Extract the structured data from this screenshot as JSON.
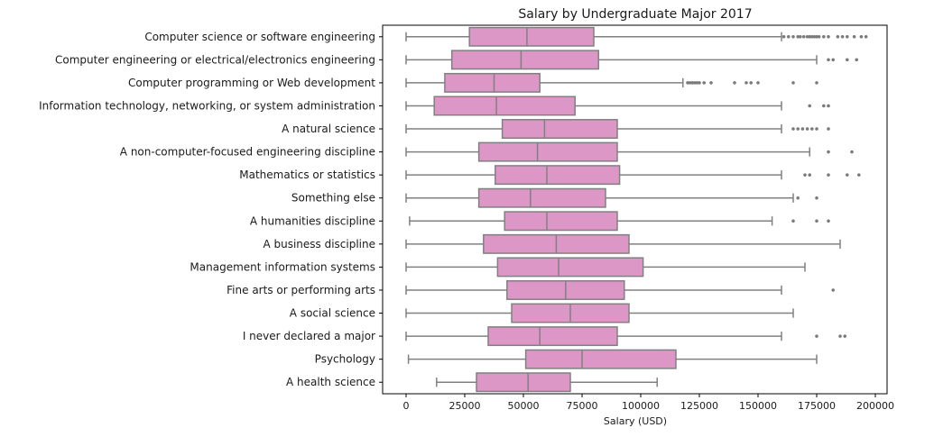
{
  "chart_data": {
    "type": "box",
    "title": "Salary by Undergraduate Major 2017",
    "xlabel": "Salary (USD)",
    "ylabel": "",
    "orientation": "horizontal",
    "xlim": [
      -10000,
      205000
    ],
    "xticks": [
      0,
      25000,
      50000,
      75000,
      100000,
      125000,
      150000,
      175000,
      200000
    ],
    "xtick_labels": [
      "0",
      "25000",
      "50000",
      "75000",
      "100000",
      "125000",
      "150000",
      "175000",
      "200000"
    ],
    "box_color": "#dd97c6",
    "edge_color": "#808080",
    "median_color": "#808080",
    "grid": false,
    "categories": [
      "Computer science or software engineering",
      "Computer engineering or electrical/electronics engineering",
      "Computer programming or Web development",
      "Information technology, networking, or system administration",
      "A natural science",
      "A non-computer-focused engineering discipline",
      "Mathematics or statistics",
      "Something else",
      "A humanities discipline",
      "A business discipline",
      "Management information systems",
      "Fine arts or performing arts",
      "A social science",
      "I never declared a major",
      "Psychology",
      "A health science"
    ],
    "boxes": [
      {
        "min": 0,
        "q1": 27000,
        "median": 51500,
        "q3": 80000,
        "max": 160000,
        "outliers": [
          161000,
          163000,
          165000,
          167000,
          168000,
          169500,
          171000,
          172000,
          173000,
          174000,
          175000,
          176000,
          178000,
          180000,
          184000,
          186000,
          188000,
          191000,
          194000,
          196000
        ]
      },
      {
        "min": 0,
        "q1": 19500,
        "median": 49000,
        "q3": 82000,
        "max": 175000,
        "outliers": [
          180000,
          182000,
          188000,
          192000
        ]
      },
      {
        "min": 0,
        "q1": 16500,
        "median": 37500,
        "q3": 57000,
        "max": 118000,
        "outliers": [
          120000,
          121000,
          122000,
          123000,
          124000,
          125000,
          127000,
          130000,
          140000,
          145000,
          147000,
          150000,
          165000,
          175000
        ]
      },
      {
        "min": 0,
        "q1": 12000,
        "median": 38500,
        "q3": 72000,
        "max": 160000,
        "outliers": [
          172000,
          178000,
          180000
        ]
      },
      {
        "min": 0,
        "q1": 41000,
        "median": 59000,
        "q3": 90000,
        "max": 160000,
        "outliers": [
          165000,
          167000,
          169000,
          171000,
          173000,
          175000,
          180000
        ]
      },
      {
        "min": 0,
        "q1": 31000,
        "median": 56000,
        "q3": 90000,
        "max": 172000,
        "outliers": [
          180000,
          190000
        ]
      },
      {
        "min": 0,
        "q1": 38000,
        "median": 60000,
        "q3": 91000,
        "max": 160000,
        "outliers": [
          170000,
          172000,
          180000,
          188000,
          193000
        ]
      },
      {
        "min": 0,
        "q1": 31000,
        "median": 53000,
        "q3": 85000,
        "max": 165000,
        "outliers": [
          167000,
          175000
        ]
      },
      {
        "min": 1500,
        "q1": 42000,
        "median": 60000,
        "q3": 90000,
        "max": 156000,
        "outliers": [
          165000,
          175000,
          180000
        ]
      },
      {
        "min": 0,
        "q1": 33000,
        "median": 64000,
        "q3": 95000,
        "max": 185000,
        "outliers": []
      },
      {
        "min": 0,
        "q1": 39000,
        "median": 65000,
        "q3": 101000,
        "max": 170000,
        "outliers": []
      },
      {
        "min": 0,
        "q1": 43000,
        "median": 68000,
        "q3": 93000,
        "max": 160000,
        "outliers": [
          182000
        ]
      },
      {
        "min": 0,
        "q1": 45000,
        "median": 70000,
        "q3": 95000,
        "max": 165000,
        "outliers": []
      },
      {
        "min": 0,
        "q1": 35000,
        "median": 57000,
        "q3": 90000,
        "max": 160000,
        "outliers": [
          175000,
          185000,
          187000
        ]
      },
      {
        "min": 1000,
        "q1": 51000,
        "median": 75000,
        "q3": 115000,
        "max": 175000,
        "outliers": []
      },
      {
        "min": 13000,
        "q1": 30000,
        "median": 52000,
        "q3": 70000,
        "max": 107000,
        "outliers": []
      }
    ]
  }
}
